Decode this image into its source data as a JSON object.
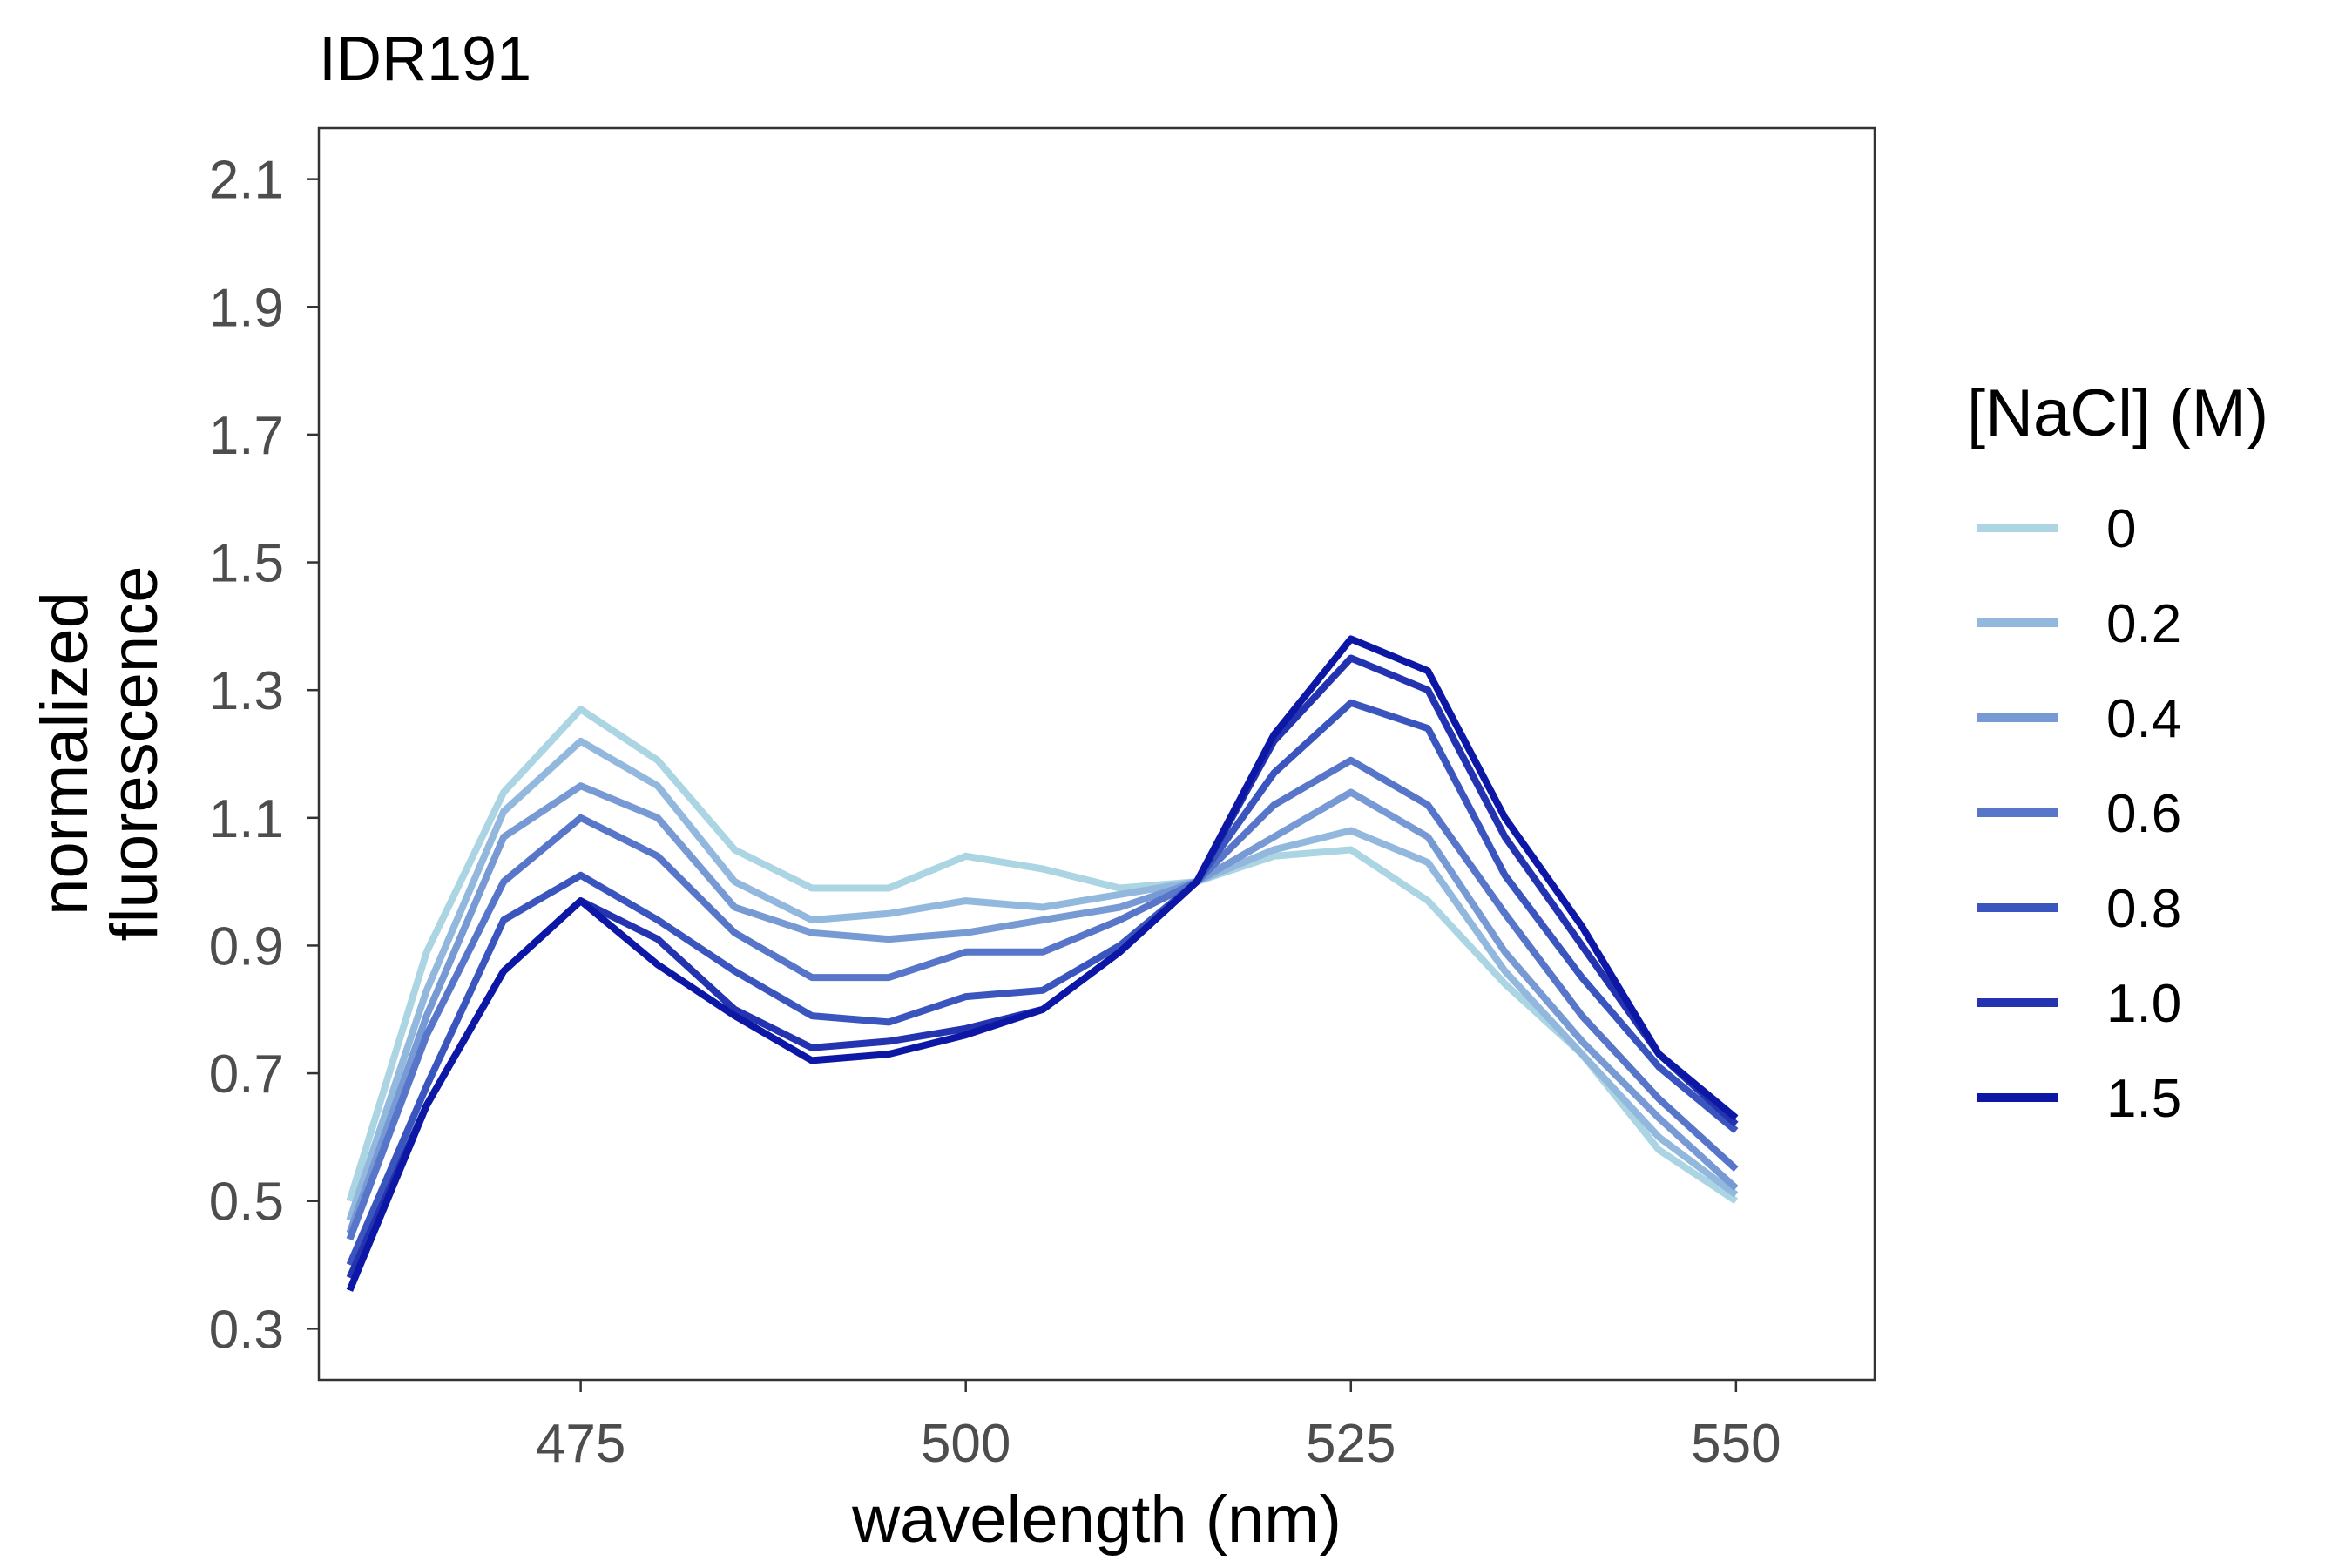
{
  "chart_data": {
    "type": "line",
    "title": "IDR191",
    "xlabel": "wavelength (nm)",
    "ylabel": [
      "normalized",
      "fluorescence"
    ],
    "xlim": [
      458,
      559
    ],
    "ylim": [
      0.22,
      2.18
    ],
    "x_ticks": [
      475,
      500,
      525,
      550
    ],
    "y_ticks": [
      0.3,
      0.5,
      0.7,
      0.9,
      1.1,
      1.3,
      1.5,
      1.7,
      1.9,
      2.1
    ],
    "grid": false,
    "legend_title": "[NaCl] (M)",
    "legend_position": "right",
    "x": [
      460,
      465,
      470,
      475,
      480,
      485,
      490,
      495,
      500,
      505,
      510,
      515,
      520,
      525,
      530,
      535,
      540,
      545,
      550
    ],
    "series": [
      {
        "name": "0",
        "color": "#abd5e3",
        "values": [
          0.5,
          0.89,
          1.14,
          1.27,
          1.19,
          1.05,
          0.99,
          0.99,
          1.04,
          1.02,
          0.99,
          1.0,
          1.04,
          1.05,
          0.97,
          0.84,
          0.73,
          0.58,
          0.5
        ]
      },
      {
        "name": "0.2",
        "color": "#93b8de",
        "values": [
          0.47,
          0.83,
          1.11,
          1.22,
          1.15,
          1.0,
          0.94,
          0.95,
          0.97,
          0.96,
          0.98,
          1.0,
          1.05,
          1.08,
          1.03,
          0.86,
          0.73,
          0.6,
          0.51
        ]
      },
      {
        "name": "0.4",
        "color": "#7799d4",
        "values": [
          0.45,
          0.79,
          1.07,
          1.15,
          1.1,
          0.96,
          0.92,
          0.91,
          0.92,
          0.94,
          0.96,
          1.0,
          1.07,
          1.14,
          1.07,
          0.89,
          0.75,
          0.63,
          0.52
        ]
      },
      {
        "name": "0.6",
        "color": "#5876c9",
        "values": [
          0.44,
          0.76,
          1.0,
          1.1,
          1.04,
          0.92,
          0.85,
          0.85,
          0.89,
          0.89,
          0.94,
          1.0,
          1.12,
          1.19,
          1.12,
          0.95,
          0.79,
          0.66,
          0.55
        ]
      },
      {
        "name": "0.8",
        "color": "#3b55bf",
        "values": [
          0.4,
          0.68,
          0.94,
          1.01,
          0.94,
          0.86,
          0.79,
          0.78,
          0.82,
          0.83,
          0.9,
          1.0,
          1.17,
          1.28,
          1.24,
          1.01,
          0.85,
          0.71,
          0.61
        ]
      },
      {
        "name": "1.0",
        "color": "#2434b0",
        "values": [
          0.38,
          0.65,
          0.86,
          0.97,
          0.91,
          0.8,
          0.74,
          0.75,
          0.77,
          0.8,
          0.89,
          1.0,
          1.22,
          1.35,
          1.3,
          1.07,
          0.9,
          0.73,
          0.62
        ]
      },
      {
        "name": "1.5",
        "color": "#0d17a6",
        "values": [
          0.36,
          0.65,
          0.86,
          0.97,
          0.87,
          0.79,
          0.72,
          0.73,
          0.76,
          0.8,
          0.89,
          1.0,
          1.23,
          1.38,
          1.33,
          1.1,
          0.93,
          0.73,
          0.63
        ]
      }
    ]
  }
}
